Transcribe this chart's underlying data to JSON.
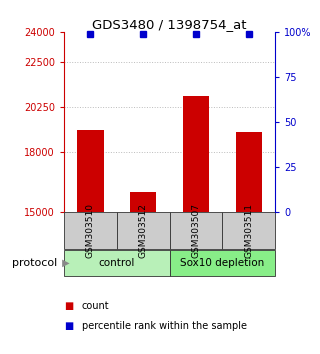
{
  "title": "GDS3480 / 1398754_at",
  "samples": [
    "GSM303510",
    "GSM303512",
    "GSM303507",
    "GSM303511"
  ],
  "counts": [
    19100,
    16000,
    20800,
    19000
  ],
  "percentile_ranks": [
    99,
    99,
    99,
    99
  ],
  "y_min": 15000,
  "y_max": 24000,
  "y_ticks": [
    15000,
    18000,
    20250,
    22500,
    24000
  ],
  "y_tick_labels": [
    "15000",
    "18000",
    "20250",
    "22500",
    "24000"
  ],
  "y2_ticks": [
    0,
    25,
    50,
    75,
    100
  ],
  "y2_tick_labels": [
    "0",
    "25",
    "50",
    "75",
    "100%"
  ],
  "bar_color": "#cc0000",
  "dot_color": "#0000cc",
  "bar_bottom": 15000,
  "groups": [
    {
      "label": "control",
      "samples": [
        0,
        1
      ],
      "color": "#b8f0b8"
    },
    {
      "label": "Sox10 depletion",
      "samples": [
        2,
        3
      ],
      "color": "#88ee88"
    }
  ],
  "group_label": "protocol",
  "legend_items": [
    {
      "color": "#cc0000",
      "label": "count"
    },
    {
      "color": "#0000cc",
      "label": "percentile rank within the sample"
    }
  ],
  "dotted_line_color": "#bbbbbb",
  "dotted_lines": [
    18000,
    20250,
    22500
  ],
  "bg_color": "#ffffff",
  "sample_box_color": "#cccccc",
  "left_axis_color": "#cc0000",
  "right_axis_color": "#0000cc",
  "bar_width": 0.5
}
